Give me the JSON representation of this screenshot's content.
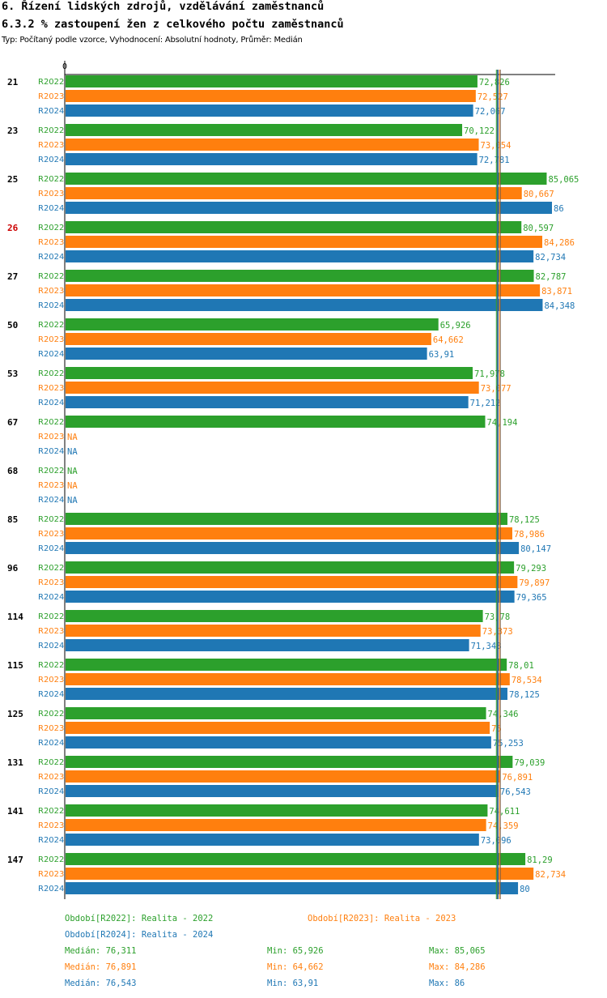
{
  "header": {
    "title": "6. Řízení lidských zdrojů, vzdělávání zaměstnanců",
    "subtitle": "6.3.2 % zastoupení žen z celkového počtu zaměstnanců",
    "info": "Typ: Počítaný podle vzorce, Vyhodnocení: Absolutní hodnoty, Průměr: Medián"
  },
  "colors": {
    "R2022": "#2ca02c",
    "R2023": "#ff7f0e",
    "R2024": "#1f77b4",
    "highlight": "#cc0000"
  },
  "chart_data": {
    "type": "bar",
    "orientation": "horizontal",
    "axis_zero_label": "0",
    "xlim": [
      0,
      86
    ],
    "series_names": [
      "R2022",
      "R2023",
      "R2024"
    ],
    "groups": [
      {
        "label": "21",
        "highlight": false,
        "values": [
          72.826,
          72.527,
          72.067
        ],
        "labels": [
          "72,826",
          "72,527",
          "72,067"
        ]
      },
      {
        "label": "23",
        "highlight": false,
        "values": [
          70.122,
          73.054,
          72.781
        ],
        "labels": [
          "70,122",
          "73,054",
          "72,781"
        ]
      },
      {
        "label": "25",
        "highlight": false,
        "values": [
          85.065,
          80.667,
          86
        ],
        "labels": [
          "85,065",
          "80,667",
          "86"
        ]
      },
      {
        "label": "26",
        "highlight": true,
        "values": [
          80.597,
          84.286,
          82.734
        ],
        "labels": [
          "80,597",
          "84,286",
          "82,734"
        ]
      },
      {
        "label": "27",
        "highlight": false,
        "values": [
          82.787,
          83.871,
          84.348
        ],
        "labels": [
          "82,787",
          "83,871",
          "84,348"
        ]
      },
      {
        "label": "50",
        "highlight": false,
        "values": [
          65.926,
          64.662,
          63.91
        ],
        "labels": [
          "65,926",
          "64,662",
          "63,91"
        ]
      },
      {
        "label": "53",
        "highlight": false,
        "values": [
          71.978,
          73.077,
          71.212
        ],
        "labels": [
          "71,978",
          "73,077",
          "71,212"
        ]
      },
      {
        "label": "67",
        "highlight": false,
        "values": [
          74.194,
          null,
          null
        ],
        "labels": [
          "74,194",
          "NA",
          "NA"
        ]
      },
      {
        "label": "68",
        "highlight": false,
        "values": [
          null,
          null,
          null
        ],
        "labels": [
          "NA",
          "NA",
          "NA"
        ]
      },
      {
        "label": "85",
        "highlight": false,
        "values": [
          78.125,
          78.986,
          80.147
        ],
        "labels": [
          "78,125",
          "78,986",
          "80,147"
        ]
      },
      {
        "label": "96",
        "highlight": false,
        "values": [
          79.293,
          79.897,
          79.365
        ],
        "labels": [
          "79,293",
          "79,897",
          "79,365"
        ]
      },
      {
        "label": "114",
        "highlight": false,
        "values": [
          73.78,
          73.373,
          71.348
        ],
        "labels": [
          "73,78",
          "73,373",
          "71,348"
        ]
      },
      {
        "label": "115",
        "highlight": false,
        "values": [
          78.01,
          78.534,
          78.125
        ],
        "labels": [
          "78,01",
          "78,534",
          "78,125"
        ]
      },
      {
        "label": "125",
        "highlight": false,
        "values": [
          74.346,
          75,
          75.253
        ],
        "labels": [
          "74,346",
          "75",
          "75,253"
        ]
      },
      {
        "label": "131",
        "highlight": false,
        "values": [
          79.039,
          76.891,
          76.543
        ],
        "labels": [
          "79,039",
          "76,891",
          "76,543"
        ]
      },
      {
        "label": "141",
        "highlight": false,
        "values": [
          74.611,
          74.359,
          73.096
        ],
        "labels": [
          "74,611",
          "74,359",
          "73,096"
        ]
      },
      {
        "label": "147",
        "highlight": false,
        "values": [
          81.29,
          82.734,
          80
        ],
        "labels": [
          "81,29",
          "82,734",
          "80"
        ]
      }
    ],
    "medians": [
      76.311,
      76.891,
      76.543
    ]
  },
  "legend": {
    "periods": [
      "Období[R2022]: Realita - 2022",
      "Období[R2023]: Realita - 2023",
      "Období[R2024]: Realita - 2024"
    ],
    "stats": [
      {
        "median": "Medián: 76,311",
        "min": "Min: 65,926",
        "max": "Max: 85,065"
      },
      {
        "median": "Medián: 76,891",
        "min": "Min: 64,662",
        "max": "Max: 84,286"
      },
      {
        "median": "Medián: 76,543",
        "min": "Min: 63,91",
        "max": "Max: 86"
      }
    ]
  }
}
